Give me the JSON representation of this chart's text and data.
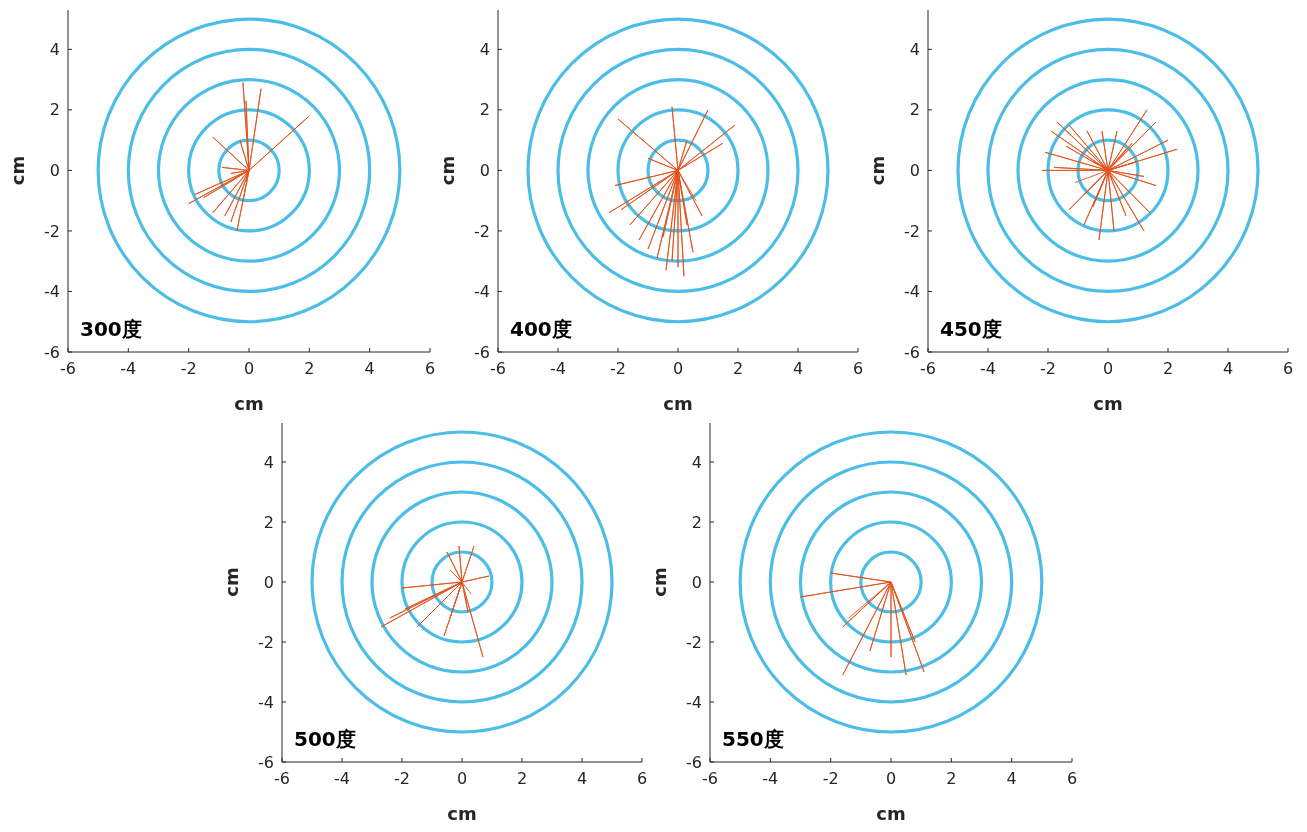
{
  "chart_data": [
    {
      "type": "line",
      "xlabel": "cm",
      "ylabel": "cm",
      "xlim": [
        -6,
        6
      ],
      "ylim": [
        -6,
        5.3
      ],
      "xticks": [
        -6,
        -4,
        -2,
        0,
        2,
        4,
        6
      ],
      "yticks": [
        -6,
        -4,
        -2,
        0,
        2,
        4
      ],
      "grid": false,
      "annotations": [
        "300度"
      ],
      "series": [
        {
          "color": "#e0541e",
          "x": [
            0,
            -0.2,
            0,
            0.4,
            0,
            -0.1,
            0,
            2.0,
            0,
            -1.2,
            0,
            -0.3,
            0,
            -0.9,
            0,
            -0.6,
            0,
            -2.0,
            0,
            -1.8,
            0,
            -1.5,
            0,
            -1.2,
            0,
            -0.8,
            0,
            -0.4,
            0,
            -0.6,
            0,
            -0.2
          ],
          "values": [
            0,
            2.9,
            0,
            2.7,
            0,
            2.3,
            0,
            1.8,
            0,
            1.1,
            0,
            1.0,
            0,
            0.1,
            0,
            -0.1,
            0,
            -1.1,
            0,
            -0.8,
            0,
            -0.9,
            0,
            -1.4,
            0,
            -1.5,
            0,
            -2.0,
            0,
            -1.7,
            0,
            -1.0
          ]
        }
      ]
    },
    {
      "type": "line",
      "xlabel": "cm",
      "ylabel": "cm",
      "xlim": [
        -6,
        6
      ],
      "ylim": [
        -6,
        5.3
      ],
      "xticks": [
        -6,
        -4,
        -2,
        0,
        2,
        4,
        6
      ],
      "yticks": [
        -6,
        -4,
        -2,
        0,
        2,
        4
      ],
      "grid": false,
      "annotations": [
        "400度"
      ],
      "series": [
        {
          "color": "#e0541e",
          "x": [
            0,
            -2.0,
            0,
            -0.2,
            0,
            1.0,
            0,
            1.9,
            0,
            1.5,
            0,
            -1.0,
            0,
            0.3,
            0,
            -2.1,
            0,
            -2.3,
            0,
            -1.9,
            0,
            -1.6,
            0,
            -1.3,
            0,
            -1.0,
            0,
            -0.7,
            0,
            -0.4,
            0,
            -0.2,
            0,
            0.0,
            0,
            0.2,
            0,
            0.5,
            0,
            0.8,
            0,
            0.3,
            0,
            -0.5,
            0,
            0.6
          ],
          "values": [
            0,
            1.7,
            0,
            2.1,
            0,
            2.0,
            0,
            1.5,
            0,
            0.9,
            0,
            0.4,
            0,
            1.0,
            0,
            -0.5,
            0,
            -1.4,
            0,
            -1.3,
            0,
            -1.8,
            0,
            -2.3,
            0,
            -2.6,
            0,
            -2.9,
            0,
            -3.3,
            0,
            -3.0,
            0,
            -3.2,
            0,
            -3.5,
            0,
            -2.7,
            0,
            -1.5,
            0,
            -1.8,
            0,
            -2.2,
            0,
            -1.0
          ]
        }
      ]
    },
    {
      "type": "line",
      "xlabel": "cm",
      "ylabel": "cm",
      "xlim": [
        -6,
        6
      ],
      "ylim": [
        -6,
        5.3
      ],
      "xticks": [
        -6,
        -4,
        -2,
        0,
        2,
        4,
        6
      ],
      "yticks": [
        -6,
        -4,
        -2,
        0,
        2,
        4
      ],
      "grid": false,
      "annotations": [
        "450度"
      ],
      "series": [
        {
          "color": "#e0541e",
          "x": [
            0,
            -1.7,
            0,
            -1.3,
            0,
            -0.7,
            0,
            -0.2,
            0,
            0.3,
            0,
            1.3,
            0,
            1.6,
            0,
            2.0,
            0,
            2.3,
            0,
            1.6,
            0,
            1.2,
            0,
            1.0,
            0,
            1.2,
            0,
            0.6,
            0,
            0.2,
            0,
            -0.3,
            0,
            -0.8,
            0,
            -1.3,
            0,
            -0.8,
            0,
            -2.1,
            0,
            -2.2,
            0,
            -1.8,
            0,
            -1.9,
            0,
            -1.4,
            0,
            -0.5,
            0,
            0.8,
            0,
            1.4,
            0,
            -0.5,
            0,
            0.6,
            0,
            -1.1
          ],
          "values": [
            0,
            1.6,
            0,
            1.5,
            0,
            1.3,
            0,
            1.3,
            0,
            1.3,
            0,
            2.0,
            0,
            1.6,
            0,
            1.0,
            0,
            0.7,
            0,
            -0.5,
            0,
            -0.2,
            0,
            0.3,
            0,
            -2.0,
            0,
            -1.5,
            0,
            -2.0,
            0,
            -2.3,
            0,
            -1.8,
            0,
            -1.3,
            0,
            -0.8,
            0,
            0.6,
            0,
            0.0,
            0,
            0.1,
            0,
            1.3,
            0,
            0.8,
            0,
            0.3,
            0,
            0.9,
            0,
            -1.4,
            0,
            -1.2,
            0,
            0.7,
            0,
            -0.4
          ]
        }
      ]
    },
    {
      "type": "line",
      "xlabel": "cm",
      "ylabel": "cm",
      "xlim": [
        -6,
        6
      ],
      "ylim": [
        -6,
        5.3
      ],
      "xticks": [
        -6,
        -4,
        -2,
        0,
        2,
        4,
        6
      ],
      "yticks": [
        -6,
        -4,
        -2,
        0,
        2,
        4
      ],
      "grid": false,
      "annotations": [
        "500度"
      ],
      "series": [
        {
          "color": "#e0541e",
          "x": [
            0,
            -2.0,
            0,
            -2.7,
            0,
            -2.4,
            0,
            -1.5,
            0,
            -1.9,
            0,
            -0.6,
            0,
            -0.4,
            0,
            0.7,
            0,
            0.2,
            0,
            0.9,
            0,
            0.4,
            0,
            -0.1,
            0,
            -0.5,
            0,
            -0.4,
            0,
            0.3
          ],
          "values": [
            0,
            -0.2,
            0,
            -1.5,
            0,
            -1.2,
            0,
            -1.5,
            0,
            -0.9,
            0,
            -1.8,
            0,
            -1.2,
            0,
            -2.5,
            0,
            -1.0,
            0,
            0.2,
            0,
            1.2,
            0,
            1.2,
            0,
            1.0,
            0,
            0.4,
            0,
            -0.4
          ]
        }
      ]
    },
    {
      "type": "line",
      "xlabel": "cm",
      "ylabel": "cm",
      "xlim": [
        -6,
        6
      ],
      "ylim": [
        -6,
        5.3
      ],
      "xticks": [
        -6,
        -4,
        -2,
        0,
        2,
        4,
        6
      ],
      "yticks": [
        -6,
        -4,
        -2,
        0,
        2,
        4
      ],
      "grid": false,
      "annotations": [
        "550度"
      ],
      "series": [
        {
          "color": "#e0541e",
          "x": [
            0,
            -2.0,
            0,
            -3.0,
            0,
            -1.6,
            0,
            -1.6,
            0,
            -0.7,
            0,
            0.0,
            0,
            0.5,
            0,
            1.1,
            0,
            0.8,
            0,
            -1.4
          ],
          "values": [
            0,
            0.3,
            0,
            -0.5,
            0,
            -1.5,
            0,
            -3.1,
            0,
            -2.3,
            0,
            -2.5,
            0,
            -3.1,
            0,
            -3.0,
            0,
            -2.0,
            0,
            -1.2
          ]
        }
      ]
    }
  ]
}
